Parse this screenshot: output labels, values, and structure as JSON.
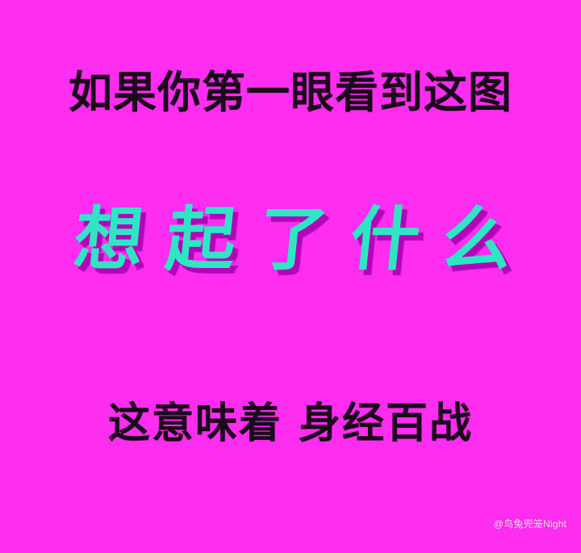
{
  "lines": {
    "top": "如果你第一眼看到这图",
    "middle": "想起了什么",
    "bottom": "这意味着 身经百战"
  },
  "watermark": "@鸟兔兜笼Night",
  "colors": {
    "background": "#ff2df0",
    "top_text": "#1b0a1b",
    "middle_text": "#2ee6c3",
    "middle_shadow": "#b400b8",
    "bottom_text": "#1b0a1b",
    "watermark_text": "#ffffff"
  }
}
